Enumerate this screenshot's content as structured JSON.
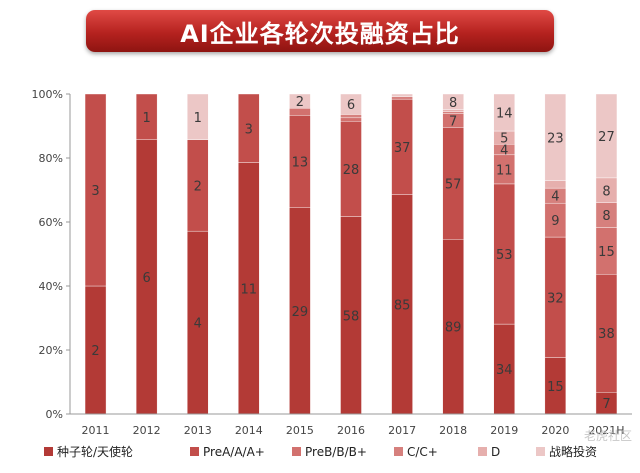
{
  "header": {
    "title": "AI企业各轮次投融资占比"
  },
  "watermark": "老虎社区",
  "chart_data": {
    "type": "bar",
    "stacked": "percent",
    "categories": [
      "2011",
      "2012",
      "2013",
      "2014",
      "2015",
      "2016",
      "2017",
      "2018",
      "2019",
      "2020",
      "2021H"
    ],
    "y_ticks": [
      "0%",
      "20%",
      "40%",
      "60%",
      "80%",
      "100%"
    ],
    "ylim": [
      0,
      100
    ],
    "legend_position": "bottom",
    "series": [
      {
        "name": "种子轮/天使轮",
        "color": "#b33a36",
        "values": [
          2,
          6,
          4,
          11,
          29,
          58,
          85,
          89,
          34,
          15,
          7
        ]
      },
      {
        "name": "PreA/A/A+",
        "color": "#c24e4b",
        "values": [
          3,
          1,
          2,
          3,
          13,
          28,
          37,
          57,
          53,
          32,
          38
        ]
      },
      {
        "name": "PreB/B/B+",
        "color": "#d2716e",
        "values": [
          0,
          0,
          0,
          0,
          1,
          1,
          0,
          7,
          11,
          9,
          15
        ]
      },
      {
        "name": "C/C+",
        "color": "#d6807d",
        "values": [
          0,
          0,
          0,
          0,
          0,
          1,
          1,
          1,
          4,
          4,
          8
        ]
      },
      {
        "name": "D",
        "color": "#e6afad",
        "values": [
          0,
          0,
          0,
          0,
          0,
          0,
          0,
          1,
          5,
          2,
          8
        ]
      },
      {
        "name": "战略投资",
        "color": "#ecc7c6",
        "values": [
          0,
          0,
          1,
          0,
          2,
          6,
          1,
          8,
          14,
          23,
          27
        ]
      }
    ]
  }
}
